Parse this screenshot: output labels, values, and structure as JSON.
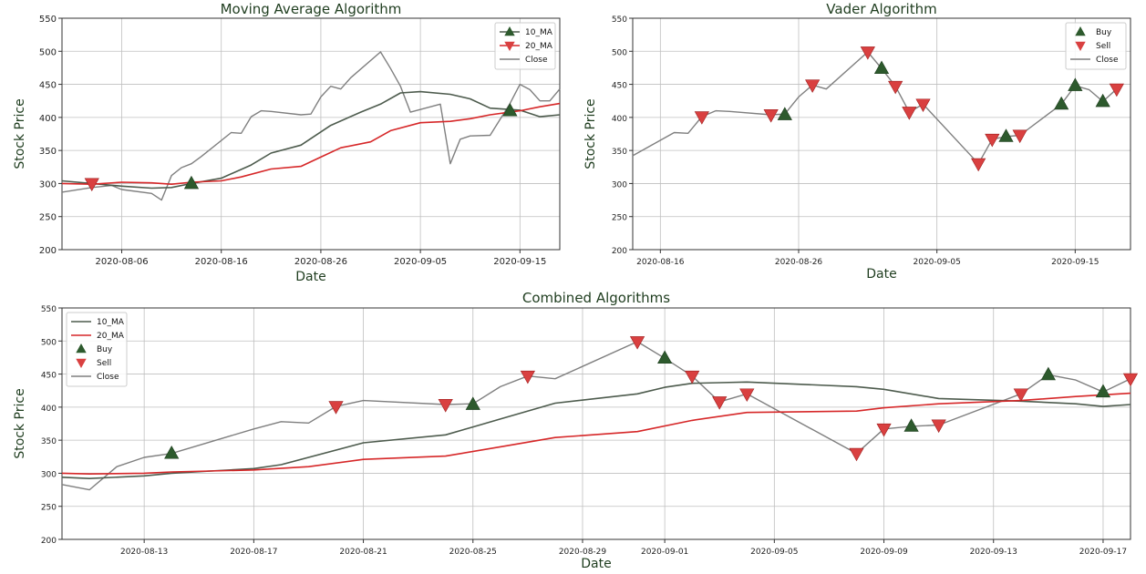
{
  "colors": {
    "ma10": "#4d5b4d",
    "ma20": "#d62728",
    "close": "#7f7f7f",
    "buy": "#2d5a2d",
    "sell": "#d94040",
    "grid": "#bfbfbf",
    "title": "#1f3d1f"
  },
  "chart_data": [
    {
      "type": "line",
      "title": "Moving Average Algorithm",
      "xlabel": "Date",
      "ylabel": "Stock Price",
      "ylim": [
        200,
        550
      ],
      "xlim": [
        "2020-07-31",
        "2020-09-19"
      ],
      "yticks": [
        200,
        250,
        300,
        350,
        400,
        450,
        500,
        550
      ],
      "xticks": [
        "2020-08-06",
        "2020-08-16",
        "2020-08-26",
        "2020-09-05",
        "2020-09-15"
      ],
      "grid": true,
      "legend_position": "top-right",
      "legend": [
        "10_MA",
        "20_MA",
        "Close"
      ],
      "series": [
        {
          "name": "10_MA",
          "x": [
            "2020-07-31",
            "2020-08-03",
            "2020-08-06",
            "2020-08-09",
            "2020-08-11",
            "2020-08-13",
            "2020-08-16",
            "2020-08-19",
            "2020-08-21",
            "2020-08-24",
            "2020-08-27",
            "2020-08-30",
            "2020-09-01",
            "2020-09-03",
            "2020-09-05",
            "2020-09-08",
            "2020-09-10",
            "2020-09-12",
            "2020-09-15",
            "2020-09-17",
            "2020-09-19"
          ],
          "values": [
            304,
            300,
            296,
            293,
            294,
            300,
            308,
            328,
            346,
            358,
            388,
            408,
            420,
            437,
            439,
            435,
            428,
            414,
            411,
            401,
            404
          ]
        },
        {
          "name": "20_MA",
          "x": [
            "2020-07-31",
            "2020-08-03",
            "2020-08-06",
            "2020-08-09",
            "2020-08-11",
            "2020-08-13",
            "2020-08-16",
            "2020-08-18",
            "2020-08-21",
            "2020-08-24",
            "2020-08-26",
            "2020-08-28",
            "2020-08-31",
            "2020-09-02",
            "2020-09-05",
            "2020-09-08",
            "2020-09-10",
            "2020-09-12",
            "2020-09-15",
            "2020-09-17",
            "2020-09-19"
          ],
          "values": [
            300,
            299,
            302,
            301,
            299,
            302,
            304,
            310,
            322,
            326,
            340,
            354,
            363,
            380,
            392,
            394,
            398,
            404,
            410,
            416,
            421
          ]
        },
        {
          "name": "Close",
          "x": [
            "2020-07-31",
            "2020-08-03",
            "2020-08-05",
            "2020-08-06",
            "2020-08-09",
            "2020-08-10",
            "2020-08-11",
            "2020-08-12",
            "2020-08-13",
            "2020-08-14",
            "2020-08-17",
            "2020-08-18",
            "2020-08-19",
            "2020-08-20",
            "2020-08-21",
            "2020-08-24",
            "2020-08-25",
            "2020-08-26",
            "2020-08-27",
            "2020-08-28",
            "2020-08-29",
            "2020-09-01",
            "2020-09-02",
            "2020-09-03",
            "2020-09-04",
            "2020-09-07",
            "2020-09-08",
            "2020-09-09",
            "2020-09-10",
            "2020-09-12",
            "2020-09-14",
            "2020-09-15",
            "2020-09-16",
            "2020-09-17",
            "2020-09-18",
            "2020-09-19"
          ],
          "values": [
            287,
            294,
            297,
            291,
            285,
            275,
            312,
            324,
            330,
            341,
            377,
            376,
            401,
            410,
            409,
            404,
            405,
            431,
            447,
            443,
            460,
            499,
            474,
            447,
            408,
            420,
            330,
            367,
            372,
            373,
            421,
            450,
            442,
            425,
            425,
            443
          ]
        }
      ],
      "markers": {
        "buy": [
          {
            "x": "2020-08-13",
            "y": 300
          },
          {
            "x": "2020-09-14",
            "y": 410
          }
        ],
        "sell": [
          {
            "x": "2020-08-03",
            "y": 300
          }
        ]
      }
    },
    {
      "type": "line",
      "title": "Vader Algorithm",
      "xlabel": "Date",
      "ylabel": "Stock Price",
      "ylim": [
        200,
        550
      ],
      "xlim": [
        "2020-08-14",
        "2020-09-19"
      ],
      "yticks": [
        200,
        250,
        300,
        350,
        400,
        450,
        500,
        550
      ],
      "xticks": [
        "2020-08-16",
        "2020-08-26",
        "2020-09-05",
        "2020-09-15"
      ],
      "grid": true,
      "legend_position": "top-right",
      "legend": [
        "Buy",
        "Sell",
        "Close"
      ],
      "series": [
        {
          "name": "Close",
          "x": [
            "2020-08-14",
            "2020-08-17",
            "2020-08-18",
            "2020-08-19",
            "2020-08-20",
            "2020-08-21",
            "2020-08-24",
            "2020-08-25",
            "2020-08-26",
            "2020-08-27",
            "2020-08-28",
            "2020-08-31",
            "2020-09-01",
            "2020-09-02",
            "2020-09-03",
            "2020-09-04",
            "2020-09-08",
            "2020-09-09",
            "2020-09-10",
            "2020-09-11",
            "2020-09-14",
            "2020-09-15",
            "2020-09-16",
            "2020-09-17",
            "2020-09-18"
          ],
          "values": [
            342,
            377,
            376,
            401,
            410,
            409,
            404,
            405,
            431,
            449,
            443,
            499,
            474,
            447,
            408,
            420,
            330,
            367,
            371,
            373,
            420,
            448,
            442,
            424,
            443
          ]
        }
      ],
      "markers": {
        "buy": [
          {
            "x": "2020-08-25",
            "y": 404
          },
          {
            "x": "2020-09-01",
            "y": 474
          },
          {
            "x": "2020-09-10",
            "y": 371
          },
          {
            "x": "2020-09-14",
            "y": 420
          },
          {
            "x": "2020-09-15",
            "y": 448
          },
          {
            "x": "2020-09-17",
            "y": 424
          }
        ],
        "sell": [
          {
            "x": "2020-08-19",
            "y": 401
          },
          {
            "x": "2020-08-24",
            "y": 404
          },
          {
            "x": "2020-08-27",
            "y": 449
          },
          {
            "x": "2020-08-31",
            "y": 499
          },
          {
            "x": "2020-09-02",
            "y": 447
          },
          {
            "x": "2020-09-03",
            "y": 408
          },
          {
            "x": "2020-09-04",
            "y": 420
          },
          {
            "x": "2020-09-08",
            "y": 330
          },
          {
            "x": "2020-09-09",
            "y": 367
          },
          {
            "x": "2020-09-11",
            "y": 373
          },
          {
            "x": "2020-09-18",
            "y": 443
          }
        ]
      }
    },
    {
      "type": "line",
      "title": "Combined Algorithms",
      "xlabel": "Date",
      "ylabel": "Stock Price",
      "ylim": [
        200,
        550
      ],
      "xlim": [
        "2020-08-10",
        "2020-09-18"
      ],
      "yticks": [
        200,
        250,
        300,
        350,
        400,
        450,
        500,
        550
      ],
      "xticks": [
        "2020-08-13",
        "2020-08-17",
        "2020-08-21",
        "2020-08-25",
        "2020-08-29",
        "2020-09-01",
        "2020-09-05",
        "2020-09-09",
        "2020-09-13",
        "2020-09-17"
      ],
      "grid": true,
      "legend_position": "top-left",
      "legend": [
        "10_MA",
        "20_MA",
        "Buy",
        "Sell",
        "Close"
      ],
      "series": [
        {
          "name": "10_MA",
          "x": [
            "2020-08-10",
            "2020-08-11",
            "2020-08-13",
            "2020-08-14",
            "2020-08-17",
            "2020-08-18",
            "2020-08-21",
            "2020-08-24",
            "2020-08-25",
            "2020-08-26",
            "2020-08-28",
            "2020-08-31",
            "2020-09-01",
            "2020-09-02",
            "2020-09-03",
            "2020-09-04",
            "2020-09-08",
            "2020-09-09",
            "2020-09-11",
            "2020-09-14",
            "2020-09-16",
            "2020-09-17",
            "2020-09-18"
          ],
          "values": [
            294,
            292,
            296,
            300,
            307,
            313,
            346,
            358,
            370,
            382,
            406,
            420,
            430,
            436,
            437,
            438,
            431,
            427,
            413,
            409,
            405,
            401,
            404
          ]
        },
        {
          "name": "20_MA",
          "x": [
            "2020-08-10",
            "2020-08-11",
            "2020-08-13",
            "2020-08-14",
            "2020-08-17",
            "2020-08-19",
            "2020-08-21",
            "2020-08-24",
            "2020-08-26",
            "2020-08-28",
            "2020-08-31",
            "2020-09-02",
            "2020-09-04",
            "2020-09-08",
            "2020-09-09",
            "2020-09-11",
            "2020-09-14",
            "2020-09-16",
            "2020-09-18"
          ],
          "values": [
            300,
            299,
            300,
            302,
            305,
            310,
            321,
            326,
            340,
            354,
            363,
            380,
            392,
            394,
            399,
            405,
            410,
            416,
            421
          ]
        },
        {
          "name": "Close",
          "x": [
            "2020-08-10",
            "2020-08-11",
            "2020-08-12",
            "2020-08-13",
            "2020-08-14",
            "2020-08-17",
            "2020-08-18",
            "2020-08-19",
            "2020-08-20",
            "2020-08-21",
            "2020-08-24",
            "2020-08-25",
            "2020-08-26",
            "2020-08-27",
            "2020-08-28",
            "2020-08-31",
            "2020-09-01",
            "2020-09-02",
            "2020-09-03",
            "2020-09-04",
            "2020-09-08",
            "2020-09-09",
            "2020-09-10",
            "2020-09-11",
            "2020-09-14",
            "2020-09-15",
            "2020-09-16",
            "2020-09-17",
            "2020-09-18"
          ],
          "values": [
            283,
            275,
            310,
            324,
            330,
            367,
            378,
            376,
            401,
            410,
            404,
            405,
            431,
            447,
            443,
            499,
            474,
            447,
            408,
            420,
            330,
            367,
            371,
            373,
            420,
            449,
            441,
            423,
            443
          ]
        }
      ],
      "markers": {
        "buy": [
          {
            "x": "2020-08-14",
            "y": 330
          },
          {
            "x": "2020-08-25",
            "y": 404
          },
          {
            "x": "2020-09-01",
            "y": 474
          },
          {
            "x": "2020-09-10",
            "y": 371
          },
          {
            "x": "2020-09-15",
            "y": 449
          },
          {
            "x": "2020-09-17",
            "y": 423
          }
        ],
        "sell": [
          {
            "x": "2020-08-20",
            "y": 401
          },
          {
            "x": "2020-08-24",
            "y": 404
          },
          {
            "x": "2020-08-27",
            "y": 447
          },
          {
            "x": "2020-08-31",
            "y": 499
          },
          {
            "x": "2020-09-02",
            "y": 447
          },
          {
            "x": "2020-09-03",
            "y": 408
          },
          {
            "x": "2020-09-04",
            "y": 420
          },
          {
            "x": "2020-09-08",
            "y": 330
          },
          {
            "x": "2020-09-09",
            "y": 367
          },
          {
            "x": "2020-09-11",
            "y": 373
          },
          {
            "x": "2020-09-14",
            "y": 420
          },
          {
            "x": "2020-09-18",
            "y": 443
          }
        ]
      }
    }
  ]
}
